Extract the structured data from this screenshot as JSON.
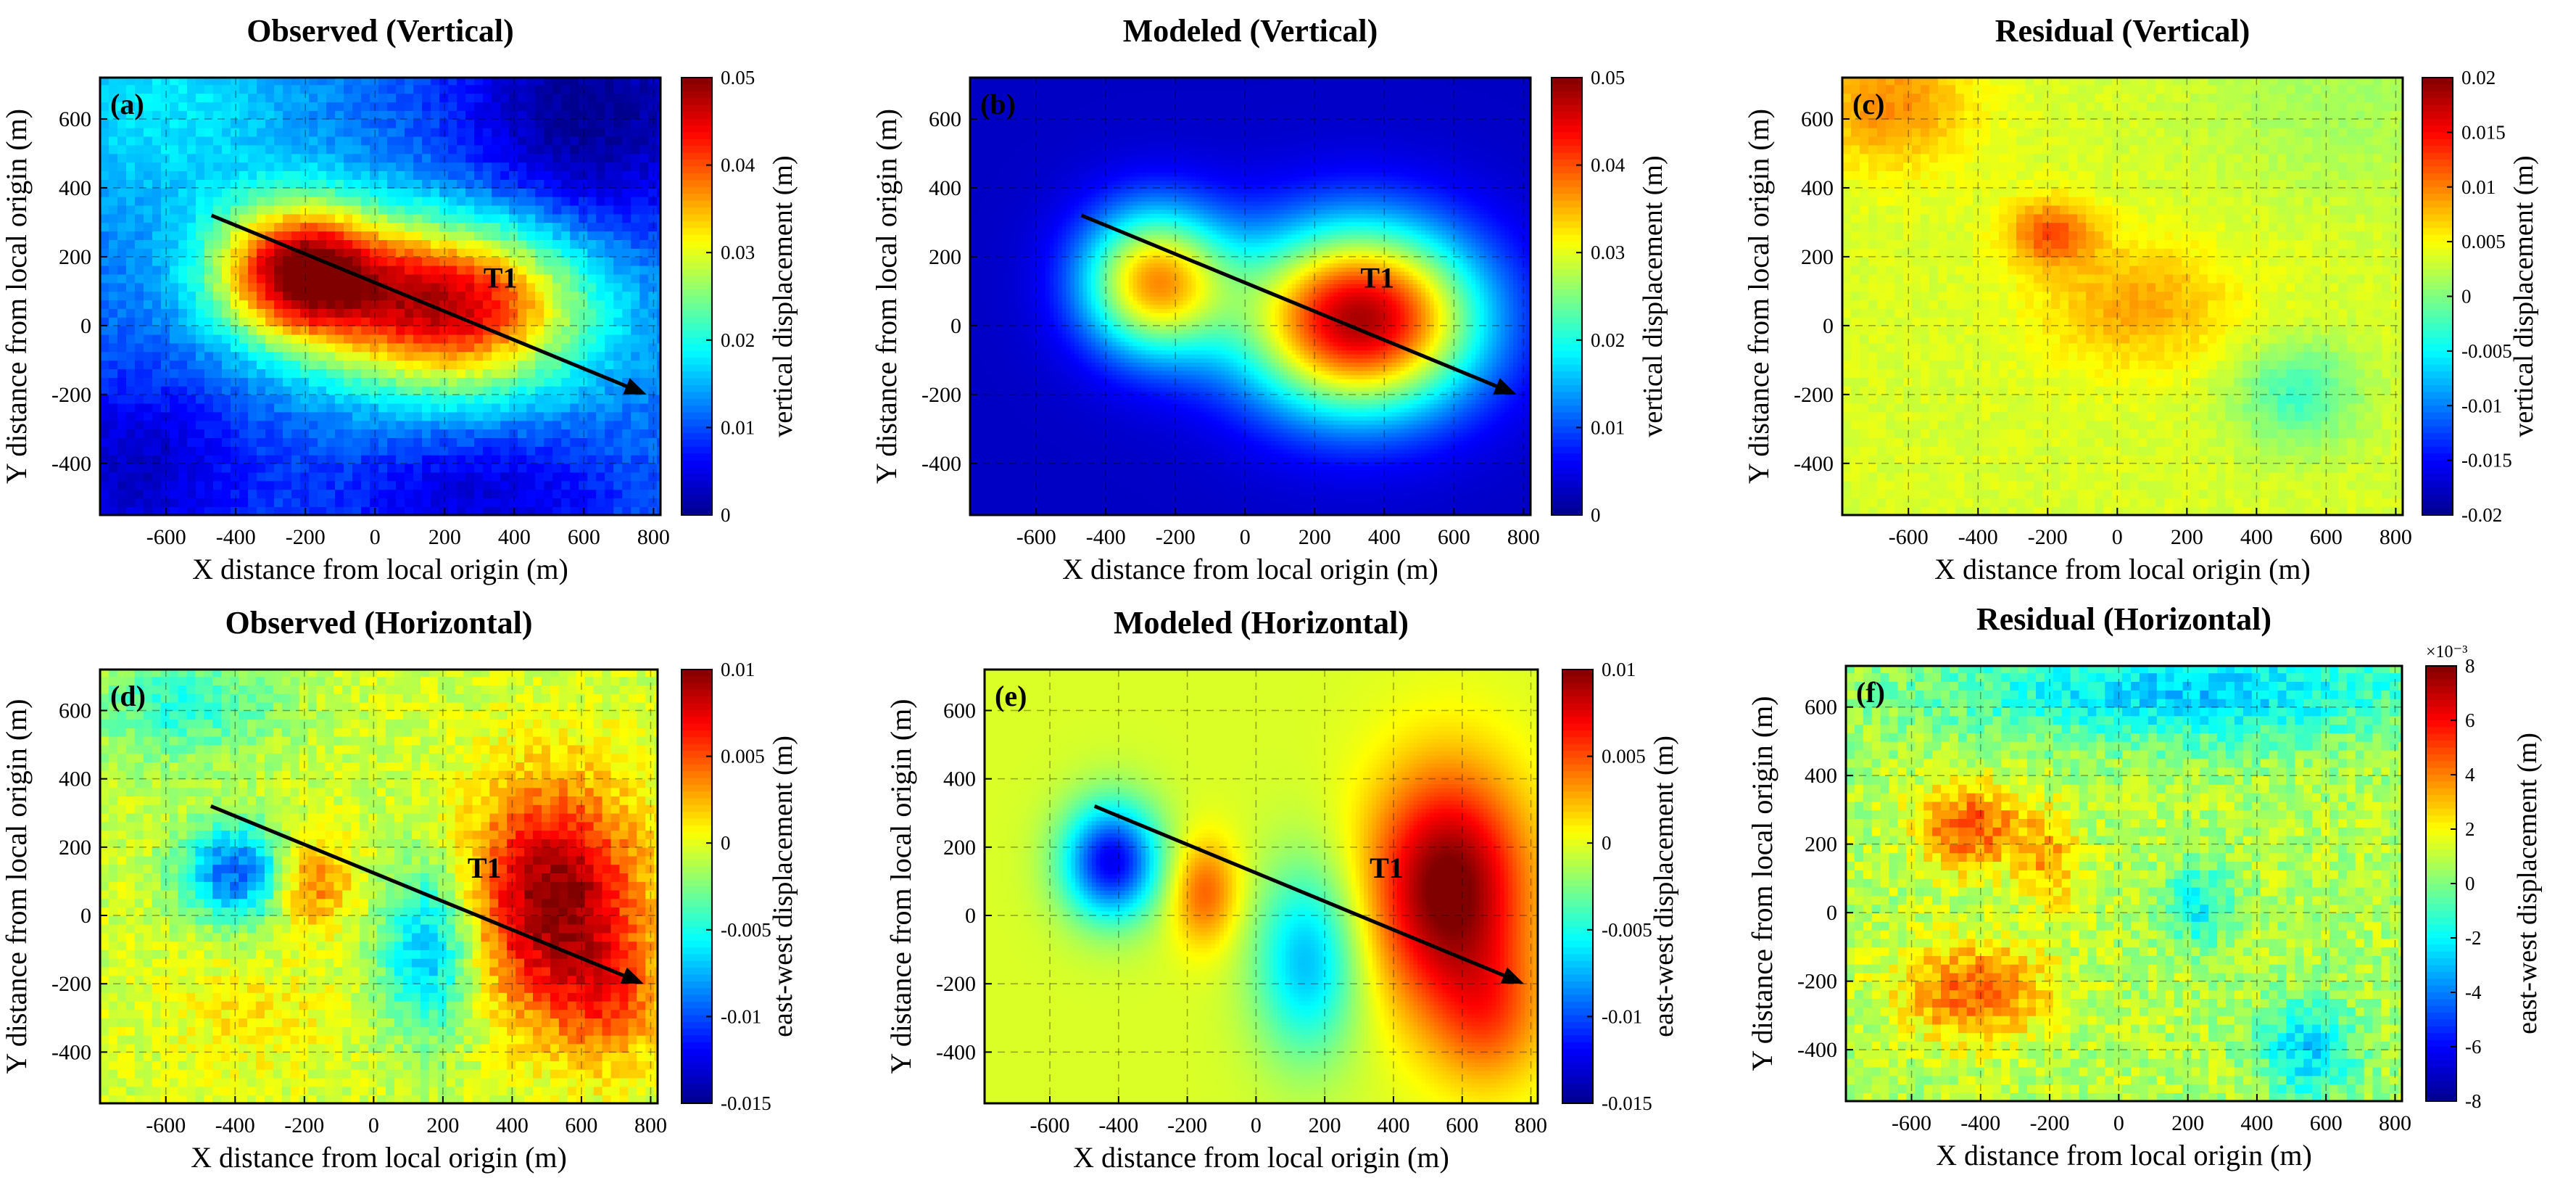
{
  "figure": {
    "description": "Six-panel displacement map comparison"
  },
  "colors": {
    "jet": [
      "#00008f",
      "#0000ff",
      "#0080ff",
      "#00ffff",
      "#80ff80",
      "#ffff00",
      "#ff8000",
      "#ff0000",
      "#800000"
    ],
    "arrow": "#000000",
    "grid": "#000000"
  },
  "chart_data": [
    {
      "id": "a",
      "type": "heatmap",
      "title": "Observed (Vertical)",
      "panel_label": "(a)",
      "xlabel": "X distance from local origin (m)",
      "ylabel": "Y distance from local origin (m)",
      "xlim": [
        -790,
        820
      ],
      "ylim": [
        -550,
        720
      ],
      "xticks": [
        "-600",
        "-400",
        "-200",
        "0",
        "200",
        "400",
        "600",
        "800"
      ],
      "yticks": [
        "-400",
        "-200",
        "0",
        "200",
        "400",
        "600"
      ],
      "colorbar": {
        "label": "vertical displacement (m)",
        "range": [
          0,
          0.05
        ],
        "ticks": [
          "0",
          "0.01",
          "0.02",
          "0.03",
          "0.04",
          "0.05"
        ],
        "exponent": ""
      },
      "arrow": {
        "from": [
          -470,
          320
        ],
        "to": [
          780,
          -200
        ],
        "label": "T1",
        "label_at": [
          360,
          110
        ]
      },
      "field": {
        "base": 0.012,
        "trend": [
          0.0,
          0.0,
          0.0
        ],
        "noise": 0.0015,
        "step": 25,
        "pixel": 25,
        "blobs": [
          {
            "x": -220,
            "y": 160,
            "sx": 170,
            "sy": 140,
            "amp": 0.035
          },
          {
            "x": 220,
            "y": 60,
            "sx": 260,
            "sy": 170,
            "amp": 0.035
          },
          {
            "x": -600,
            "y": 650,
            "sx": 260,
            "sy": 220,
            "amp": 0.006
          },
          {
            "x": 620,
            "y": 620,
            "sx": 280,
            "sy": 260,
            "amp": -0.012
          },
          {
            "x": -700,
            "y": -420,
            "sx": 250,
            "sy": 200,
            "amp": -0.009
          },
          {
            "x": 300,
            "y": -500,
            "sx": 300,
            "sy": 150,
            "amp": -0.008
          }
        ]
      }
    },
    {
      "id": "b",
      "type": "heatmap",
      "title": "Modeled (Vertical)",
      "panel_label": "(b)",
      "xlabel": "X distance from local origin (m)",
      "ylabel": "Y distance from local origin (m)",
      "xlim": [
        -790,
        820
      ],
      "ylim": [
        -550,
        720
      ],
      "xticks": [
        "-600",
        "-400",
        "-200",
        "0",
        "200",
        "400",
        "600",
        "800"
      ],
      "yticks": [
        "-400",
        "-200",
        "0",
        "200",
        "400",
        "600"
      ],
      "colorbar": {
        "label": "vertical displacement (m)",
        "range": [
          0,
          0.05
        ],
        "ticks": [
          "0",
          "0.01",
          "0.02",
          "0.03",
          "0.04",
          "0.05"
        ],
        "exponent": ""
      },
      "arrow": {
        "from": [
          -470,
          320
        ],
        "to": [
          780,
          -200
        ],
        "label": "T1",
        "label_at": [
          380,
          110
        ]
      },
      "field": {
        "base": 0.003,
        "trend": [
          0.0,
          0.0,
          0.0
        ],
        "noise": 0.0,
        "step": 12,
        "pixel": 12,
        "blobs": [
          {
            "x": -260,
            "y": 130,
            "sx": 150,
            "sy": 150,
            "amp": 0.032
          },
          {
            "x": 330,
            "y": 20,
            "sx": 240,
            "sy": 190,
            "amp": 0.045
          }
        ]
      }
    },
    {
      "id": "c",
      "type": "heatmap",
      "title": "Residual (Vertical)",
      "panel_label": "(c)",
      "xlabel": "X distance from local origin (m)",
      "ylabel": "Y distance from local origin (m)",
      "xlim": [
        -790,
        820
      ],
      "ylim": [
        -550,
        720
      ],
      "xticks": [
        "-600",
        "-400",
        "-200",
        "0",
        "200",
        "400",
        "600",
        "800"
      ],
      "yticks": [
        "-400",
        "-200",
        "0",
        "200",
        "400",
        "600"
      ],
      "colorbar": {
        "label": "vertical displacement (m)",
        "range": [
          -0.02,
          0.02
        ],
        "ticks": [
          "-0.02",
          "-0.015",
          "-0.01",
          "-0.005",
          "0",
          "0.005",
          "0.01",
          "0.015",
          "0.02"
        ],
        "exponent": ""
      },
      "arrow": null,
      "field": {
        "base": 0.0035,
        "trend": [
          0.0,
          0.0,
          0.0
        ],
        "noise": 0.0008,
        "step": 25,
        "pixel": 25,
        "blobs": [
          {
            "x": -650,
            "y": 640,
            "sx": 160,
            "sy": 130,
            "amp": 0.006
          },
          {
            "x": -190,
            "y": 270,
            "sx": 90,
            "sy": 70,
            "amp": 0.008
          },
          {
            "x": 60,
            "y": 60,
            "sx": 200,
            "sy": 130,
            "amp": 0.005
          },
          {
            "x": 520,
            "y": -200,
            "sx": 130,
            "sy": 110,
            "amp": -0.006
          },
          {
            "x": 650,
            "y": 650,
            "sx": 300,
            "sy": 200,
            "amp": -0.002
          }
        ]
      }
    },
    {
      "id": "d",
      "type": "heatmap",
      "title": "Observed (Horizontal)",
      "panel_label": "(d)",
      "xlabel": "X distance from local origin (m)",
      "ylabel": "Y distance from local origin (m)",
      "xlim": [
        -790,
        820
      ],
      "ylim": [
        -550,
        720
      ],
      "xticks": [
        "-600",
        "-400",
        "-200",
        "0",
        "200",
        "400",
        "600",
        "800"
      ],
      "yticks": [
        "-400",
        "-200",
        "0",
        "200",
        "400",
        "600"
      ],
      "colorbar": {
        "label": "east-west displacement (m)",
        "range": [
          -0.015,
          0.01
        ],
        "ticks": [
          "-0.015",
          "-0.01",
          "-0.005",
          "0",
          "0.005",
          "0.01"
        ],
        "exponent": ""
      },
      "arrow": {
        "from": [
          -470,
          320
        ],
        "to": [
          780,
          -200
        ],
        "label": "T1",
        "label_at": [
          320,
          110
        ]
      },
      "field": {
        "base": -0.0005,
        "trend": [
          0.0,
          0.0,
          0.0
        ],
        "noise": 0.0012,
        "step": 25,
        "pixel": 25,
        "blobs": [
          {
            "x": 520,
            "y": 50,
            "sx": 170,
            "sy": 230,
            "amp": 0.0105
          },
          {
            "x": 680,
            "y": -250,
            "sx": 110,
            "sy": 140,
            "amp": 0.004
          },
          {
            "x": -400,
            "y": 130,
            "sx": 110,
            "sy": 100,
            "amp": -0.009
          },
          {
            "x": -180,
            "y": 100,
            "sx": 80,
            "sy": 90,
            "amp": 0.005
          },
          {
            "x": 160,
            "y": -100,
            "sx": 100,
            "sy": 180,
            "amp": -0.007
          },
          {
            "x": -550,
            "y": 620,
            "sx": 200,
            "sy": 120,
            "amp": -0.004
          },
          {
            "x": -350,
            "y": -300,
            "sx": 180,
            "sy": 120,
            "amp": 0.0015
          }
        ]
      }
    },
    {
      "id": "e",
      "type": "heatmap",
      "title": "Modeled (Horizontal)",
      "panel_label": "(e)",
      "xlabel": "X distance from local origin (m)",
      "ylabel": "Y distance from local origin (m)",
      "xlim": [
        -790,
        820
      ],
      "ylim": [
        -550,
        720
      ],
      "xticks": [
        "-600",
        "-400",
        "-200",
        "0",
        "200",
        "400",
        "600",
        "800"
      ],
      "yticks": [
        "-400",
        "-200",
        "0",
        "200",
        "400",
        "600"
      ],
      "colorbar": {
        "label": "east-west displacement (m)",
        "range": [
          -0.015,
          0.01
        ],
        "ticks": [
          "-0.015",
          "-0.01",
          "-0.005",
          "0",
          "0.005",
          "0.01"
        ],
        "exponent": ""
      },
      "arrow": {
        "from": [
          -470,
          320
        ],
        "to": [
          780,
          -200
        ],
        "label": "T1",
        "label_at": [
          380,
          110
        ]
      },
      "field": {
        "base": -0.0003,
        "trend": [
          0.0,
          0.0,
          0.0
        ],
        "noise": 0.0,
        "step": 12,
        "pixel": 12,
        "blobs": [
          {
            "x": 560,
            "y": 80,
            "sx": 160,
            "sy": 240,
            "amp": 0.011
          },
          {
            "x": 680,
            "y": -300,
            "sx": 120,
            "sy": 150,
            "amp": 0.004
          },
          {
            "x": -420,
            "y": 160,
            "sx": 100,
            "sy": 120,
            "amp": -0.012
          },
          {
            "x": -150,
            "y": 70,
            "sx": 70,
            "sy": 110,
            "amp": 0.005
          },
          {
            "x": 150,
            "y": -130,
            "sx": 110,
            "sy": 200,
            "amp": -0.007
          }
        ]
      }
    },
    {
      "id": "f",
      "type": "heatmap",
      "title": "Residual (Horizontal)",
      "panel_label": "(f)",
      "xlabel": "X distance from local origin (m)",
      "ylabel": "Y distance from local origin (m)",
      "xlim": [
        -790,
        820
      ],
      "ylim": [
        -550,
        720
      ],
      "xticks": [
        "-600",
        "-400",
        "-200",
        "0",
        "200",
        "400",
        "600",
        "800"
      ],
      "yticks": [
        "-400",
        "-200",
        "0",
        "200",
        "400",
        "600"
      ],
      "colorbar": {
        "label": "east-west displacement (m)",
        "range": [
          -8,
          8
        ],
        "ticks": [
          "-8",
          "-6",
          "-4",
          "-2",
          "0",
          "2",
          "4",
          "6",
          "8"
        ],
        "exponent": "×10⁻³"
      },
      "arrow": null,
      "field": {
        "base": 0.8,
        "trend": [
          0.0,
          0.0,
          0.0
        ],
        "noise": 1.0,
        "step": 25,
        "pixel": 25,
        "blobs": [
          {
            "x": -430,
            "y": 250,
            "sx": 110,
            "sy": 90,
            "amp": 4.0
          },
          {
            "x": -420,
            "y": -230,
            "sx": 150,
            "sy": 100,
            "amp": 3.8
          },
          {
            "x": -200,
            "y": 150,
            "sx": 60,
            "sy": 100,
            "amp": 2.5
          },
          {
            "x": 200,
            "y": 650,
            "sx": 500,
            "sy": 110,
            "amp": -3.5
          },
          {
            "x": 230,
            "y": 20,
            "sx": 70,
            "sy": 80,
            "amp": -3.0
          },
          {
            "x": 550,
            "y": -400,
            "sx": 100,
            "sy": 100,
            "amp": -3.5
          }
        ]
      }
    }
  ]
}
